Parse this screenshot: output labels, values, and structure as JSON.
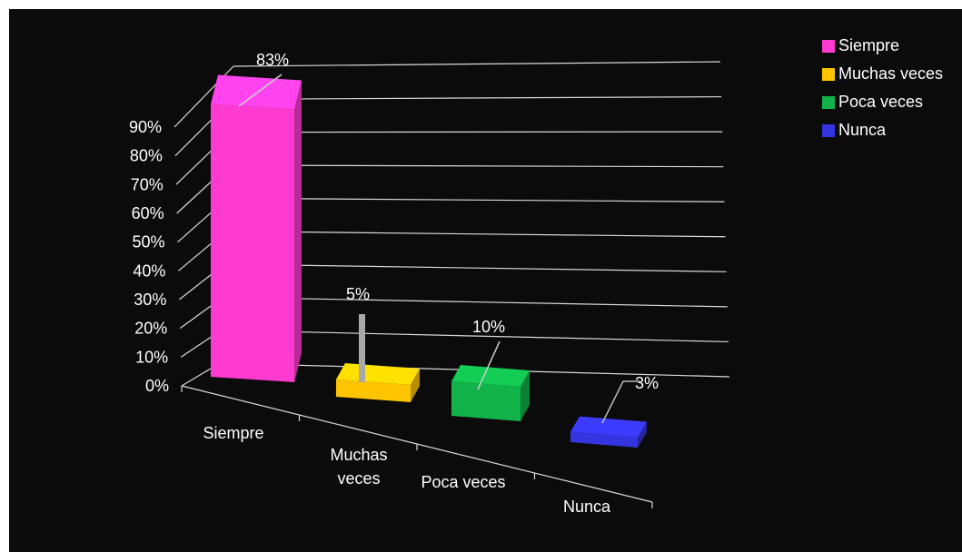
{
  "chart_data": {
    "type": "bar",
    "categories": [
      "Siempre",
      "Muchas veces",
      "Poca veces",
      "Nunca"
    ],
    "category_lines": [
      [
        "Siempre"
      ],
      [
        "Muchas",
        "veces"
      ],
      [
        "Poca veces"
      ],
      [
        "Nunca"
      ]
    ],
    "series": [
      {
        "category": "Siempre",
        "value": 83,
        "label": "83%",
        "color": "#ff3ad0"
      },
      {
        "category": "Muchas veces",
        "value": 5,
        "label": "5%",
        "color": "#ffc400"
      },
      {
        "category": "Poca veces",
        "value": 10,
        "label": "10%",
        "color": "#11b24a"
      },
      {
        "category": "Nunca",
        "value": 3,
        "label": "3%",
        "color": "#3434e0"
      }
    ],
    "yticks": [
      "0%",
      "10%",
      "20%",
      "30%",
      "40%",
      "50%",
      "60%",
      "70%",
      "80%",
      "90%"
    ],
    "ylim": [
      0,
      90
    ],
    "grid": true,
    "three_d": true,
    "legend_position": "top-right",
    "title": "",
    "xlabel": "",
    "ylabel": ""
  },
  "legend": {
    "items": [
      {
        "label": "Siempre",
        "color": "#ff3ad0"
      },
      {
        "label": "Muchas veces",
        "color": "#ffc400"
      },
      {
        "label": "Poca veces",
        "color": "#11b24a"
      },
      {
        "label": "Nunca",
        "color": "#3434e0"
      }
    ]
  },
  "theme": {
    "background": "#0b0b0b",
    "text": "#ffffff",
    "grid": "#d9d9d9"
  }
}
